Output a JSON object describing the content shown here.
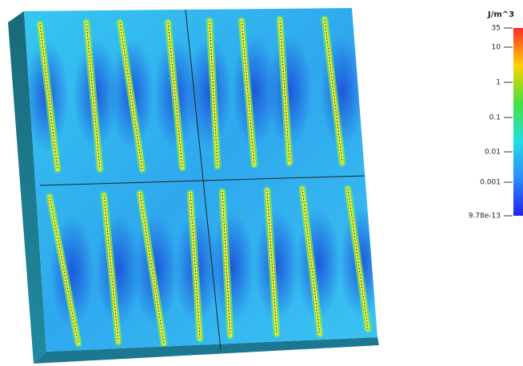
{
  "legend": {
    "title": "J/m^3",
    "labels": [
      "35",
      "10",
      "1",
      "0.1",
      "0.01",
      "0.001",
      "9.78e-13"
    ]
  }
}
